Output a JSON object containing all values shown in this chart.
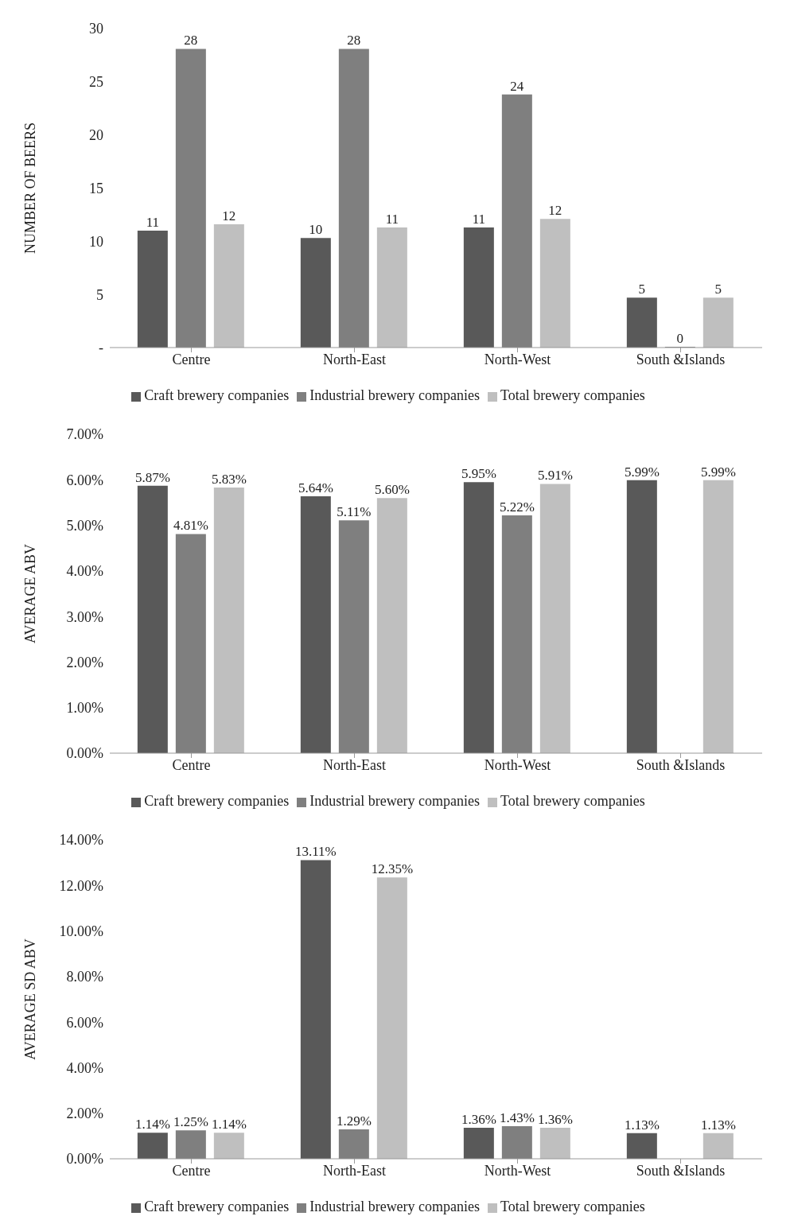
{
  "chart_data": [
    {
      "type": "bar",
      "ylabel": "NUMBER OF BEERS",
      "categories": [
        "Centre",
        "North-East",
        "North-West",
        "South &Islands"
      ],
      "series": [
        {
          "name": "Craft brewery companies",
          "color": "#595959",
          "values": [
            11.0,
            10.3,
            11.3,
            4.7
          ],
          "value_labels": [
            "11",
            "10",
            "11",
            "5"
          ]
        },
        {
          "name": "Industrial brewery companies",
          "color": "#7f7f7f",
          "values": [
            28.1,
            28.1,
            23.8,
            0
          ],
          "value_labels": [
            "28",
            "28",
            "24",
            "0"
          ]
        },
        {
          "name": "Total brewery companies",
          "color": "#bfbfbf",
          "values": [
            11.6,
            11.3,
            12.1,
            4.7
          ],
          "value_labels": [
            "12",
            "11",
            "12",
            "5"
          ]
        }
      ],
      "ylim": [
        0,
        30
      ],
      "yticks": [
        {
          "value": 0,
          "label": "-"
        },
        5,
        10,
        15,
        20,
        25,
        30
      ],
      "grid": false,
      "legend": "bottom"
    },
    {
      "type": "bar",
      "ylabel": "AVERAGE  ABV",
      "categories": [
        "Centre",
        "North-East",
        "North-West",
        "South &Islands"
      ],
      "series": [
        {
          "name": "Craft brewery companies",
          "color": "#595959",
          "values": [
            5.87,
            5.64,
            5.95,
            5.99
          ],
          "value_labels": [
            "5.87%",
            "5.64%",
            "5.95%",
            "5.99%"
          ]
        },
        {
          "name": "Industrial brewery companies",
          "color": "#7f7f7f",
          "values": [
            4.81,
            5.11,
            5.22,
            null
          ],
          "value_labels": [
            "4.81%",
            "5.11%",
            "5.22%",
            null
          ]
        },
        {
          "name": "Total brewery companies",
          "color": "#bfbfbf",
          "values": [
            5.83,
            5.6,
            5.91,
            5.99
          ],
          "value_labels": [
            "5.83%",
            "5.60%",
            "5.91%",
            "5.99%"
          ]
        }
      ],
      "ylim": [
        0,
        7
      ],
      "yticks": [
        {
          "value": 0,
          "label": "0.00%"
        },
        {
          "value": 1,
          "label": "1.00%"
        },
        {
          "value": 2,
          "label": "2.00%"
        },
        {
          "value": 3,
          "label": "3.00%"
        },
        {
          "value": 4,
          "label": "4.00%"
        },
        {
          "value": 5,
          "label": "5.00%"
        },
        {
          "value": 6,
          "label": "6.00%"
        },
        {
          "value": 7,
          "label": "7.00%"
        }
      ],
      "grid": false,
      "legend": "bottom"
    },
    {
      "type": "bar",
      "ylabel": "AVERAGE  SD ABV",
      "categories": [
        "Centre",
        "North-East",
        "North-West",
        "South &Islands"
      ],
      "series": [
        {
          "name": "Craft brewery companies",
          "color": "#595959",
          "values": [
            1.14,
            13.11,
            1.36,
            1.13
          ],
          "value_labels": [
            "1.14%",
            "13.11%",
            "1.36%",
            "1.13%"
          ]
        },
        {
          "name": "Industrial brewery companies",
          "color": "#7f7f7f",
          "values": [
            1.25,
            1.29,
            1.43,
            null
          ],
          "value_labels": [
            "1.25%",
            "1.29%",
            "1.43%",
            null
          ]
        },
        {
          "name": "Total brewery companies",
          "color": "#bfbfbf",
          "values": [
            1.14,
            12.35,
            1.36,
            1.13
          ],
          "value_labels": [
            "1.14%",
            "12.35%",
            "1.36%",
            "1.13%"
          ]
        }
      ],
      "ylim": [
        0,
        14
      ],
      "yticks": [
        {
          "value": 0,
          "label": "0.00%"
        },
        {
          "value": 2,
          "label": "2.00%"
        },
        {
          "value": 4,
          "label": "4.00%"
        },
        {
          "value": 6,
          "label": "6.00%"
        },
        {
          "value": 8,
          "label": "8.00%"
        },
        {
          "value": 10,
          "label": "10.00%"
        },
        {
          "value": 12,
          "label": "12.00%"
        },
        {
          "value": 14,
          "label": "14.00%"
        }
      ],
      "grid": false,
      "legend": "bottom"
    }
  ]
}
